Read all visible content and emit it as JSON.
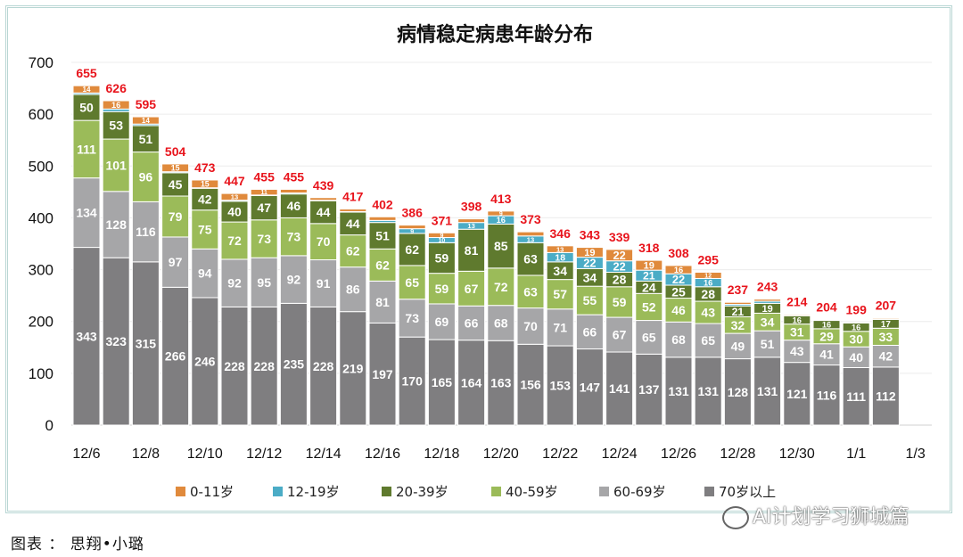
{
  "chart_data": {
    "type": "stacked-bar",
    "title": "病情稳定病患年龄分布",
    "xlabel": "",
    "ylabel": "",
    "ylim": [
      0,
      700
    ],
    "yticks": [
      0,
      100,
      200,
      300,
      400,
      500,
      600,
      700
    ],
    "grid": true,
    "legend_position": "bottom",
    "categories": [
      "12/6",
      "12/7",
      "12/8",
      "12/9",
      "12/10",
      "12/11",
      "12/12",
      "12/13",
      "12/14",
      "12/15",
      "12/16",
      "12/17",
      "12/18",
      "12/19",
      "12/20",
      "12/21",
      "12/22",
      "12/23",
      "12/24",
      "12/25",
      "12/26",
      "12/27",
      "12/28",
      "12/29",
      "12/30",
      "12/31",
      "1/1",
      "1/2"
    ],
    "xtick_labels": [
      "12/6",
      "12/8",
      "12/10",
      "12/12",
      "12/14",
      "12/16",
      "12/18",
      "12/20",
      "12/22",
      "12/24",
      "12/26",
      "12/28",
      "12/30",
      "1/1",
      "1/3"
    ],
    "series": [
      {
        "name": "70岁以上",
        "color": "#7f7e80",
        "values": [
          343,
          323,
          315,
          266,
          246,
          228,
          228,
          235,
          228,
          219,
          197,
          170,
          165,
          164,
          163,
          156,
          153,
          147,
          141,
          137,
          131,
          131,
          128,
          131,
          121,
          116,
          111,
          112
        ]
      },
      {
        "name": "60-69岁",
        "color": "#a6a6a8",
        "values": [
          134,
          128,
          116,
          97,
          94,
          92,
          95,
          92,
          91,
          86,
          81,
          73,
          69,
          66,
          68,
          70,
          71,
          66,
          67,
          65,
          68,
          65,
          49,
          51,
          43,
          41,
          40,
          42
        ]
      },
      {
        "name": "40-59岁",
        "color": "#9bbb59",
        "values": [
          111,
          101,
          96,
          79,
          75,
          72,
          73,
          73,
          70,
          62,
          62,
          65,
          59,
          67,
          72,
          63,
          57,
          55,
          59,
          52,
          46,
          43,
          32,
          34,
          31,
          29,
          30,
          33
        ]
      },
      {
        "name": "20-39岁",
        "color": "#5f7a2e",
        "values": [
          50,
          53,
          51,
          45,
          42,
          40,
          47,
          46,
          44,
          44,
          51,
          62,
          59,
          81,
          85,
          63,
          34,
          34,
          28,
          24,
          25,
          28,
          21,
          19,
          16,
          16,
          16,
          17
        ]
      },
      {
        "name": "12-19岁",
        "color": "#4bacc6",
        "values": [
          3,
          5,
          3,
          2,
          1,
          2,
          1,
          2,
          1,
          1,
          4,
          9,
          10,
          13,
          16,
          13,
          18,
          22,
          22,
          21,
          22,
          16,
          3,
          4,
          1,
          1,
          1,
          1
        ]
      },
      {
        "name": "0-11岁",
        "color": "#e08a3c",
        "values": [
          14,
          16,
          14,
          15,
          15,
          13,
          11,
          7,
          5,
          5,
          7,
          7,
          9,
          7,
          9,
          8,
          13,
          19,
          22,
          19,
          16,
          12,
          4,
          4,
          2,
          1,
          1,
          2
        ]
      }
    ],
    "totals": [
      655,
      626,
      595,
      504,
      473,
      447,
      455,
      455,
      439,
      417,
      402,
      386,
      371,
      398,
      413,
      373,
      346,
      343,
      339,
      318,
      308,
      295,
      237,
      243,
      214,
      204,
      199,
      207
    ],
    "total_label_color": "#e8141c"
  },
  "caption": "图表 ： 思翔•小璐",
  "watermark": "AI计划学习狮城篇"
}
